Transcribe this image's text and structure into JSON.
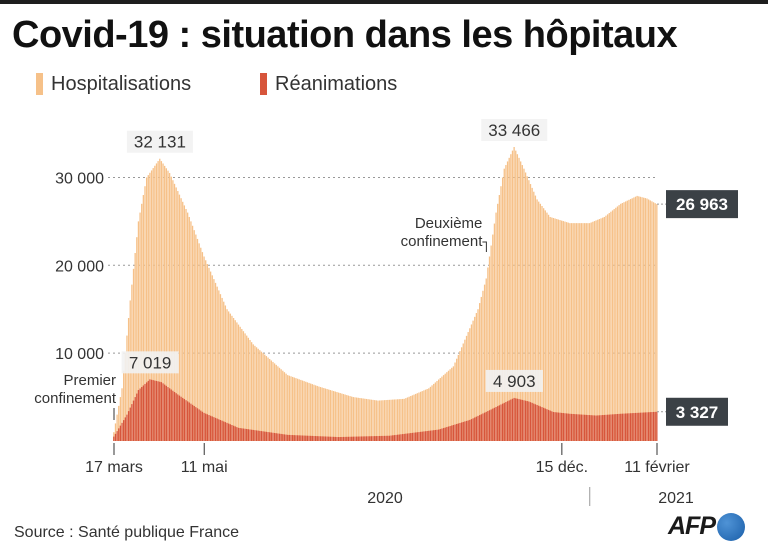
{
  "title": "Covid-19 : situation dans les hôpitaux",
  "legend": {
    "hospitalisations": "Hospitalisations",
    "reanimations": "Réanimations"
  },
  "colors": {
    "hospitalisations": "#f6c189",
    "reanimations": "#d7553b",
    "callout_box": "#3b4146",
    "grid": "#999999"
  },
  "source": "Source : Santé publique France",
  "logo": "AFP",
  "chart_data": {
    "type": "bar",
    "x_start": "2020-03-17",
    "x_end": "2021-02-11",
    "ylim": [
      0,
      33466
    ],
    "yticks": [
      {
        "value": 10000,
        "label": "10 000"
      },
      {
        "value": 20000,
        "label": "20 000"
      },
      {
        "value": 30000,
        "label": "30 000"
      }
    ],
    "xticks": [
      {
        "date": "2020-03-17",
        "label": "17 mars"
      },
      {
        "date": "2020-05-11",
        "label": "11 mai"
      },
      {
        "date": "2020-12-15",
        "label": "15 déc."
      },
      {
        "date": "2021-02-11",
        "label": "11 février"
      }
    ],
    "year_labels": [
      "2020",
      "2021"
    ],
    "series": [
      {
        "name": "Hospitalisations",
        "points": [
          [
            "2020-03-17",
            1000
          ],
          [
            "2020-03-22",
            6000
          ],
          [
            "2020-03-27",
            16000
          ],
          [
            "2020-04-01",
            25000
          ],
          [
            "2020-04-06",
            30000
          ],
          [
            "2020-04-14",
            32131
          ],
          [
            "2020-04-20",
            30500
          ],
          [
            "2020-05-01",
            26000
          ],
          [
            "2020-05-11",
            21000
          ],
          [
            "2020-05-25",
            15000
          ],
          [
            "2020-06-10",
            11000
          ],
          [
            "2020-07-01",
            7500
          ],
          [
            "2020-07-20",
            6200
          ],
          [
            "2020-08-10",
            5000
          ],
          [
            "2020-08-25",
            4600
          ],
          [
            "2020-09-10",
            4800
          ],
          [
            "2020-09-25",
            6000
          ],
          [
            "2020-10-10",
            8500
          ],
          [
            "2020-10-25",
            15000
          ],
          [
            "2020-10-30",
            18500
          ],
          [
            "2020-11-05",
            26000
          ],
          [
            "2020-11-10",
            31000
          ],
          [
            "2020-11-16",
            33466
          ],
          [
            "2020-11-22",
            31000
          ],
          [
            "2020-11-30",
            27500
          ],
          [
            "2020-12-08",
            25500
          ],
          [
            "2020-12-20",
            24800
          ],
          [
            "2021-01-01",
            24800
          ],
          [
            "2021-01-10",
            25500
          ],
          [
            "2021-01-20",
            27000
          ],
          [
            "2021-01-30",
            27900
          ],
          [
            "2021-02-05",
            27600
          ],
          [
            "2021-02-11",
            26963
          ]
        ]
      },
      {
        "name": "Réanimations",
        "points": [
          [
            "2020-03-17",
            500
          ],
          [
            "2020-03-25",
            3000
          ],
          [
            "2020-04-01",
            5800
          ],
          [
            "2020-04-08",
            7019
          ],
          [
            "2020-04-15",
            6700
          ],
          [
            "2020-04-25",
            5300
          ],
          [
            "2020-05-11",
            3200
          ],
          [
            "2020-06-01",
            1500
          ],
          [
            "2020-07-01",
            700
          ],
          [
            "2020-08-01",
            450
          ],
          [
            "2020-09-01",
            600
          ],
          [
            "2020-10-01",
            1300
          ],
          [
            "2020-10-20",
            2400
          ],
          [
            "2020-11-01",
            3500
          ],
          [
            "2020-11-16",
            4903
          ],
          [
            "2020-11-25",
            4500
          ],
          [
            "2020-12-10",
            3300
          ],
          [
            "2020-12-20",
            3100
          ],
          [
            "2021-01-05",
            2900
          ],
          [
            "2021-01-20",
            3100
          ],
          [
            "2021-02-11",
            3327
          ]
        ]
      }
    ],
    "annotations": [
      {
        "text": "32 131",
        "date": "2020-04-14",
        "value": 32131,
        "kind": "peak"
      },
      {
        "text": "33 466",
        "date": "2020-11-16",
        "value": 33466,
        "kind": "peak"
      },
      {
        "text": "7 019",
        "date": "2020-04-08",
        "value": 7019,
        "kind": "peak"
      },
      {
        "text": "4 903",
        "date": "2020-11-16",
        "value": 4903,
        "kind": "peak"
      },
      {
        "text": "26 963",
        "date": "2021-02-11",
        "value": 26963,
        "kind": "last"
      },
      {
        "text": "3 327",
        "date": "2021-02-11",
        "value": 3327,
        "kind": "last"
      },
      {
        "lines": [
          "Premier",
          "confinement"
        ],
        "date": "2020-03-17",
        "kind": "event"
      },
      {
        "lines": [
          "Deuxième",
          "confinement"
        ],
        "date": "2020-10-30",
        "kind": "event"
      }
    ],
    "grid": true
  }
}
